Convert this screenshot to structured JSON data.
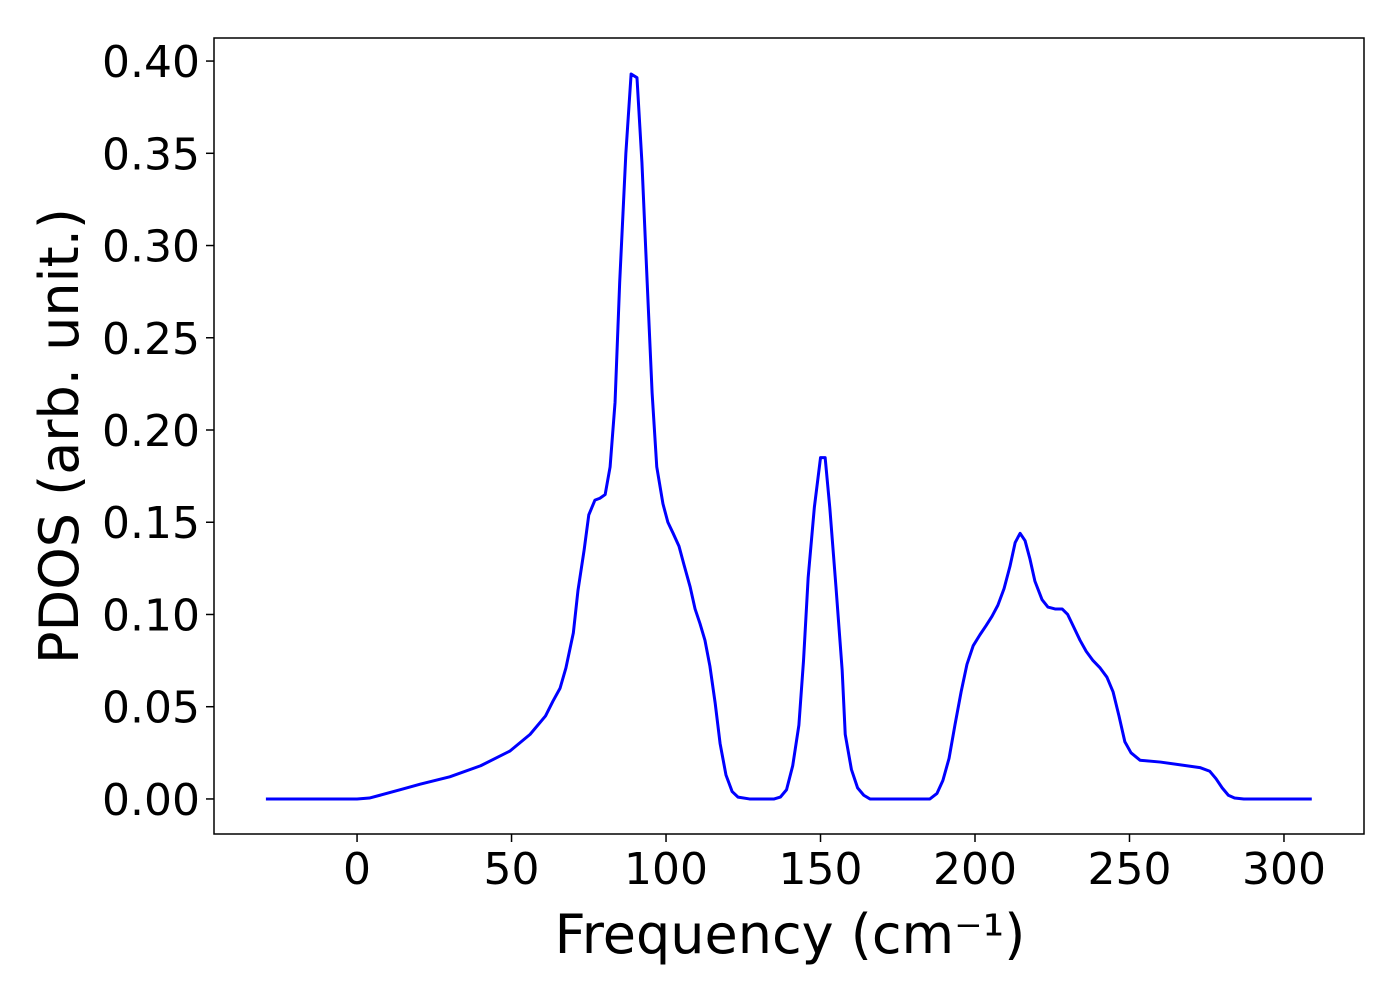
{
  "chart_data": {
    "type": "line",
    "xlabel": "Frequency (cm⁻¹)",
    "ylabel": "PDOS (arb. unit.)",
    "xlim": [
      -46.3,
      325.9
    ],
    "ylim": [
      -0.019,
      0.4125
    ],
    "xticks": [
      0,
      50,
      100,
      150,
      200,
      250,
      300
    ],
    "yticks": [
      {
        "value": 0,
        "label": "0.00"
      },
      {
        "value": 0.05,
        "label": "0.05"
      },
      {
        "value": 0.1,
        "label": "0.10"
      },
      {
        "value": 0.15,
        "label": "0.15"
      },
      {
        "value": 0.2,
        "label": "0.20"
      },
      {
        "value": 0.25,
        "label": "0.25"
      },
      {
        "value": 0.3,
        "label": "0.30"
      },
      {
        "value": 0.35,
        "label": "0.35"
      },
      {
        "value": 0.4,
        "label": "0.40"
      }
    ],
    "grid": false,
    "series": [
      {
        "color": "#0000ff",
        "x": [
          -29.5,
          0,
          4,
          7.4,
          14,
          20.4,
          30,
          40,
          49.5,
          56,
          61,
          63.4,
          65.7,
          67.6,
          70,
          71.5,
          73.5,
          75,
          77,
          78.6,
          80.3,
          81.9,
          83.5,
          85,
          87,
          88.7,
          90.6,
          92.2,
          93.9,
          95.5,
          97,
          99,
          100.6,
          102.3,
          104.2,
          105.8,
          107.8,
          109.4,
          111,
          112.6,
          114.2,
          115.9,
          117.5,
          119.4,
          121.4,
          123.3,
          127,
          135,
          137,
          139,
          141,
          143,
          144.5,
          146,
          148,
          150,
          151.5,
          153,
          155,
          157,
          158,
          160,
          162,
          164,
          166,
          185.4,
          187.7,
          189.6,
          191.6,
          193.5,
          195.5,
          197.4,
          199.4,
          201.6,
          203.6,
          205.5,
          207.4,
          209.4,
          211.3,
          213,
          214.6,
          216.2,
          217.8,
          219.4,
          221.7,
          223.6,
          225.9,
          228.2,
          230,
          232,
          234,
          236,
          238.2,
          240.5,
          242.7,
          244.7,
          246.6,
          248.5,
          250.5,
          253.4,
          260,
          272.8,
          276,
          278,
          280,
          282,
          284,
          287,
          309
        ],
        "values": [
          0,
          0,
          0.0005,
          0.002,
          0.005,
          0.008,
          0.012,
          0.018,
          0.026,
          0.035,
          0.045,
          0.053,
          0.06,
          0.071,
          0.09,
          0.113,
          0.135,
          0.154,
          0.162,
          0.163,
          0.165,
          0.18,
          0.215,
          0.28,
          0.35,
          0.393,
          0.391,
          0.345,
          0.28,
          0.22,
          0.18,
          0.16,
          0.15,
          0.144,
          0.137,
          0.127,
          0.115,
          0.103,
          0.095,
          0.086,
          0.072,
          0.052,
          0.03,
          0.013,
          0.004,
          0.001,
          0,
          0,
          0.001,
          0.005,
          0.018,
          0.04,
          0.075,
          0.12,
          0.158,
          0.185,
          0.185,
          0.158,
          0.115,
          0.07,
          0.035,
          0.016,
          0.006,
          0.002,
          0,
          0,
          0.003,
          0.01,
          0.022,
          0.04,
          0.058,
          0.073,
          0.083,
          0.089,
          0.094,
          0.099,
          0.105,
          0.114,
          0.126,
          0.139,
          0.144,
          0.14,
          0.13,
          0.118,
          0.108,
          0.104,
          0.103,
          0.103,
          0.1,
          0.093,
          0.086,
          0.08,
          0.075,
          0.071,
          0.066,
          0.058,
          0.045,
          0.031,
          0.025,
          0.021,
          0.02,
          0.017,
          0.015,
          0.011,
          0.006,
          0.002,
          0.0005,
          0,
          0
        ]
      }
    ]
  }
}
